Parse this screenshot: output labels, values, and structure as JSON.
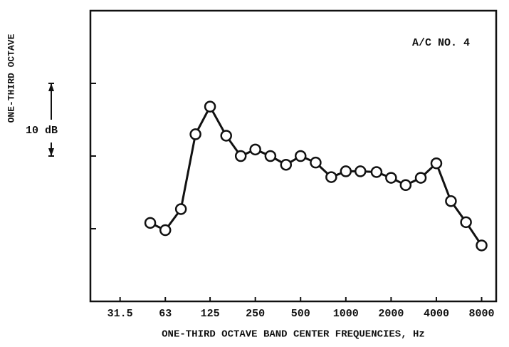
{
  "chart_data": {
    "type": "line",
    "ylabel": "ONE-THIRD OCTAVE",
    "xlabel": "ONE-THIRD OCTAVE BAND CENTER FREQUENCIES, Hz",
    "annotations": [
      "A/C NO. 4",
      "10 dB"
    ],
    "x": [
      50,
      63,
      80,
      100,
      125,
      160,
      200,
      250,
      315,
      400,
      500,
      630,
      800,
      1000,
      1250,
      1600,
      2000,
      2500,
      3150,
      4000,
      5000,
      6300,
      8000
    ],
    "series": [
      {
        "name": "A/C NO. 4",
        "color": "#111111",
        "values": [
          10.8,
          9.8,
          12.7,
          23.0,
          26.8,
          22.8,
          20.0,
          20.9,
          20.0,
          18.8,
          20.0,
          19.1,
          17.1,
          17.9,
          17.9,
          17.8,
          17.0,
          16.0,
          17.0,
          19.0,
          13.8,
          10.9,
          7.7
        ]
      }
    ],
    "xscale": "log",
    "xlim": [
      20,
      10000
    ],
    "xticks": [
      31.5,
      63,
      125,
      250,
      500,
      1000,
      2000,
      4000,
      8000
    ],
    "ylim": [
      0,
      40
    ],
    "yticks": [
      10,
      20,
      30
    ]
  }
}
